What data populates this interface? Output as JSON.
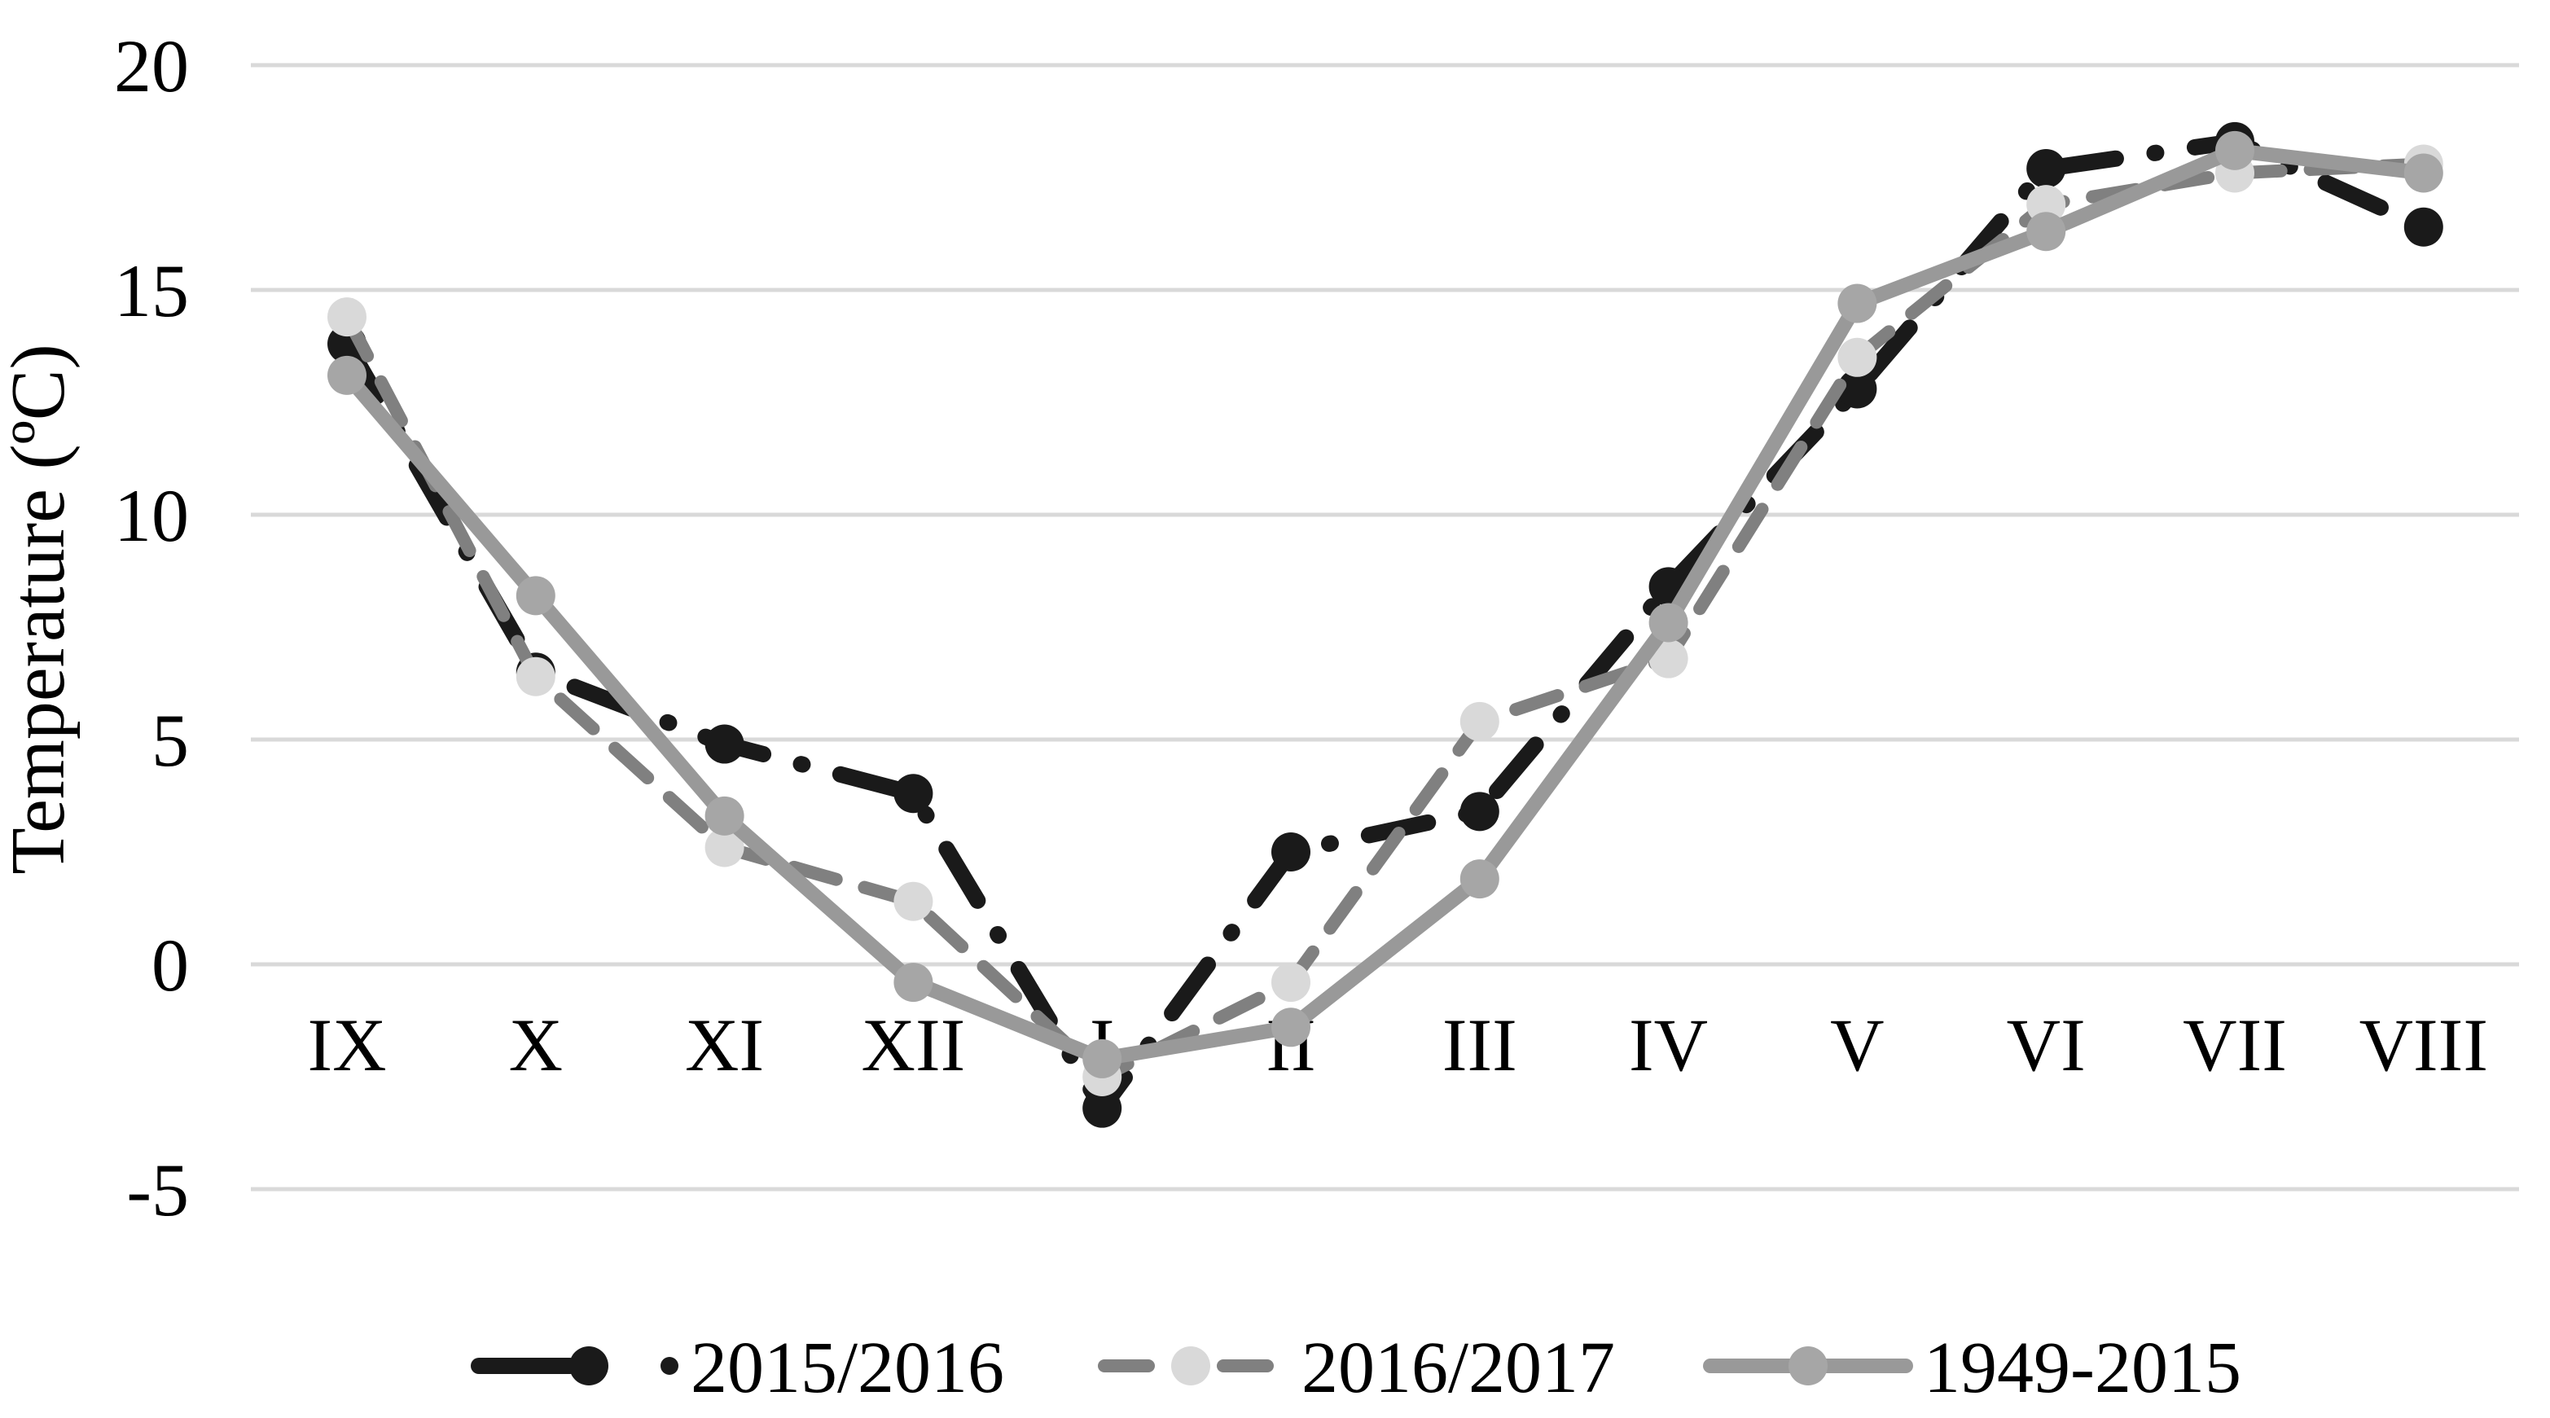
{
  "chart_data": {
    "type": "line",
    "title": "",
    "ylabel": "Temperature (ºC)",
    "xlabel": "",
    "categories": [
      "IX",
      "X",
      "XI",
      "XII",
      "I",
      "II",
      "III",
      "IV",
      "V",
      "VI",
      "VII",
      "VIII"
    ],
    "yticks": [
      20,
      15,
      10,
      5,
      0,
      -5
    ],
    "ylim": [
      -7.5,
      21
    ],
    "grid": true,
    "legend_position": "bottom",
    "series": [
      {
        "name": "2015/2016",
        "values": [
          13.8,
          6.5,
          4.9,
          3.8,
          -3.2,
          2.5,
          3.4,
          8.4,
          12.8,
          17.7,
          18.3,
          16.4
        ],
        "line_color": "#1a1a1a",
        "marker_color": "#1a1a1a",
        "line_style": "dash-dot"
      },
      {
        "name": "2016/2017",
        "values": [
          14.4,
          6.4,
          2.6,
          1.4,
          -2.5,
          -0.4,
          5.4,
          6.8,
          13.5,
          16.9,
          17.6,
          17.8
        ],
        "line_color": "#808080",
        "marker_color": "#d9d9d9",
        "line_style": "dashed"
      },
      {
        "name": "1949-2015",
        "values": [
          13.1,
          8.2,
          3.3,
          -0.4,
          -2.1,
          -1.4,
          1.9,
          7.6,
          14.7,
          16.3,
          18.1,
          17.6
        ],
        "line_color": "#999999",
        "marker_color": "#a6a6a6",
        "line_style": "solid"
      }
    ],
    "gridline_color": "#d9d9d9",
    "background_color": "#ffffff"
  }
}
